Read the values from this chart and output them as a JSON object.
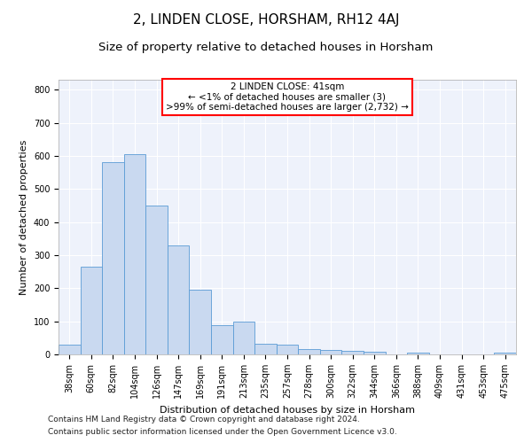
{
  "title": "2, LINDEN CLOSE, HORSHAM, RH12 4AJ",
  "subtitle": "Size of property relative to detached houses in Horsham",
  "xlabel": "Distribution of detached houses by size in Horsham",
  "ylabel": "Number of detached properties",
  "categories": [
    "38sqm",
    "60sqm",
    "82sqm",
    "104sqm",
    "126sqm",
    "147sqm",
    "169sqm",
    "191sqm",
    "213sqm",
    "235sqm",
    "257sqm",
    "278sqm",
    "300sqm",
    "322sqm",
    "344sqm",
    "366sqm",
    "388sqm",
    "409sqm",
    "431sqm",
    "453sqm",
    "475sqm"
  ],
  "values": [
    30,
    265,
    580,
    605,
    450,
    328,
    195,
    88,
    100,
    33,
    30,
    15,
    13,
    10,
    7,
    0,
    5,
    0,
    0,
    0,
    5
  ],
  "bar_color": "#c9d9f0",
  "bar_edge_color": "#5b9bd5",
  "annotation_line1": "2 LINDEN CLOSE: 41sqm",
  "annotation_line2": "← <1% of detached houses are smaller (3)",
  "annotation_line3": ">99% of semi-detached houses are larger (2,732) →",
  "annotation_box_color": "#ffffff",
  "annotation_box_edge_color": "#ff0000",
  "ylim": [
    0,
    830
  ],
  "yticks": [
    0,
    100,
    200,
    300,
    400,
    500,
    600,
    700,
    800
  ],
  "background_color": "#eef2fb",
  "footer_line1": "Contains HM Land Registry data © Crown copyright and database right 2024.",
  "footer_line2": "Contains public sector information licensed under the Open Government Licence v3.0.",
  "title_fontsize": 11,
  "subtitle_fontsize": 9.5,
  "axis_label_fontsize": 8,
  "tick_fontsize": 7,
  "annotation_fontsize": 7.5,
  "footer_fontsize": 6.5
}
